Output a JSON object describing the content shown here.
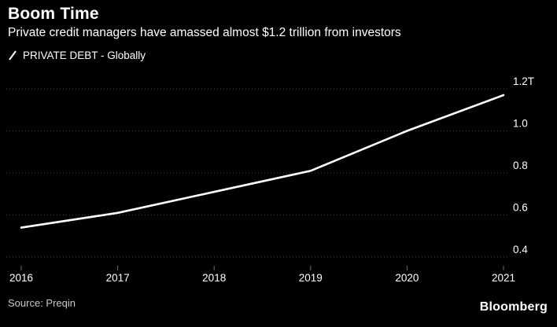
{
  "header": {
    "title": "Boom Time",
    "subtitle": "Private credit managers have amassed almost $1.2 trillion from investors"
  },
  "legend": {
    "label": "PRIVATE DEBT - Globally",
    "marker": "line-swatch"
  },
  "chart_data": {
    "type": "line",
    "x": [
      2016,
      2017,
      2018,
      2019,
      2020,
      2021
    ],
    "series": [
      {
        "name": "PRIVATE DEBT - Globally",
        "values": [
          0.54,
          0.61,
          0.71,
          0.81,
          1.0,
          1.17
        ]
      }
    ],
    "title": "Boom Time",
    "xlabel": "",
    "ylabel": "",
    "ylim": [
      0.4,
      1.2
    ],
    "yticks": [
      {
        "value": 1.2,
        "label": "1.2T"
      },
      {
        "value": 1.0,
        "label": "1.0"
      },
      {
        "value": 0.8,
        "label": "0.8"
      },
      {
        "value": 0.6,
        "label": "0.6"
      },
      {
        "value": 0.4,
        "label": "0.4"
      }
    ],
    "grid": "horizontal-dotted",
    "legend_position": "top-left",
    "line_color": "#ffffff",
    "grid_color": "#3d3d3d",
    "text_color": "#ffffff",
    "background": "#000000"
  },
  "footer": {
    "source": "Source: Preqin",
    "brand": "Bloomberg"
  }
}
